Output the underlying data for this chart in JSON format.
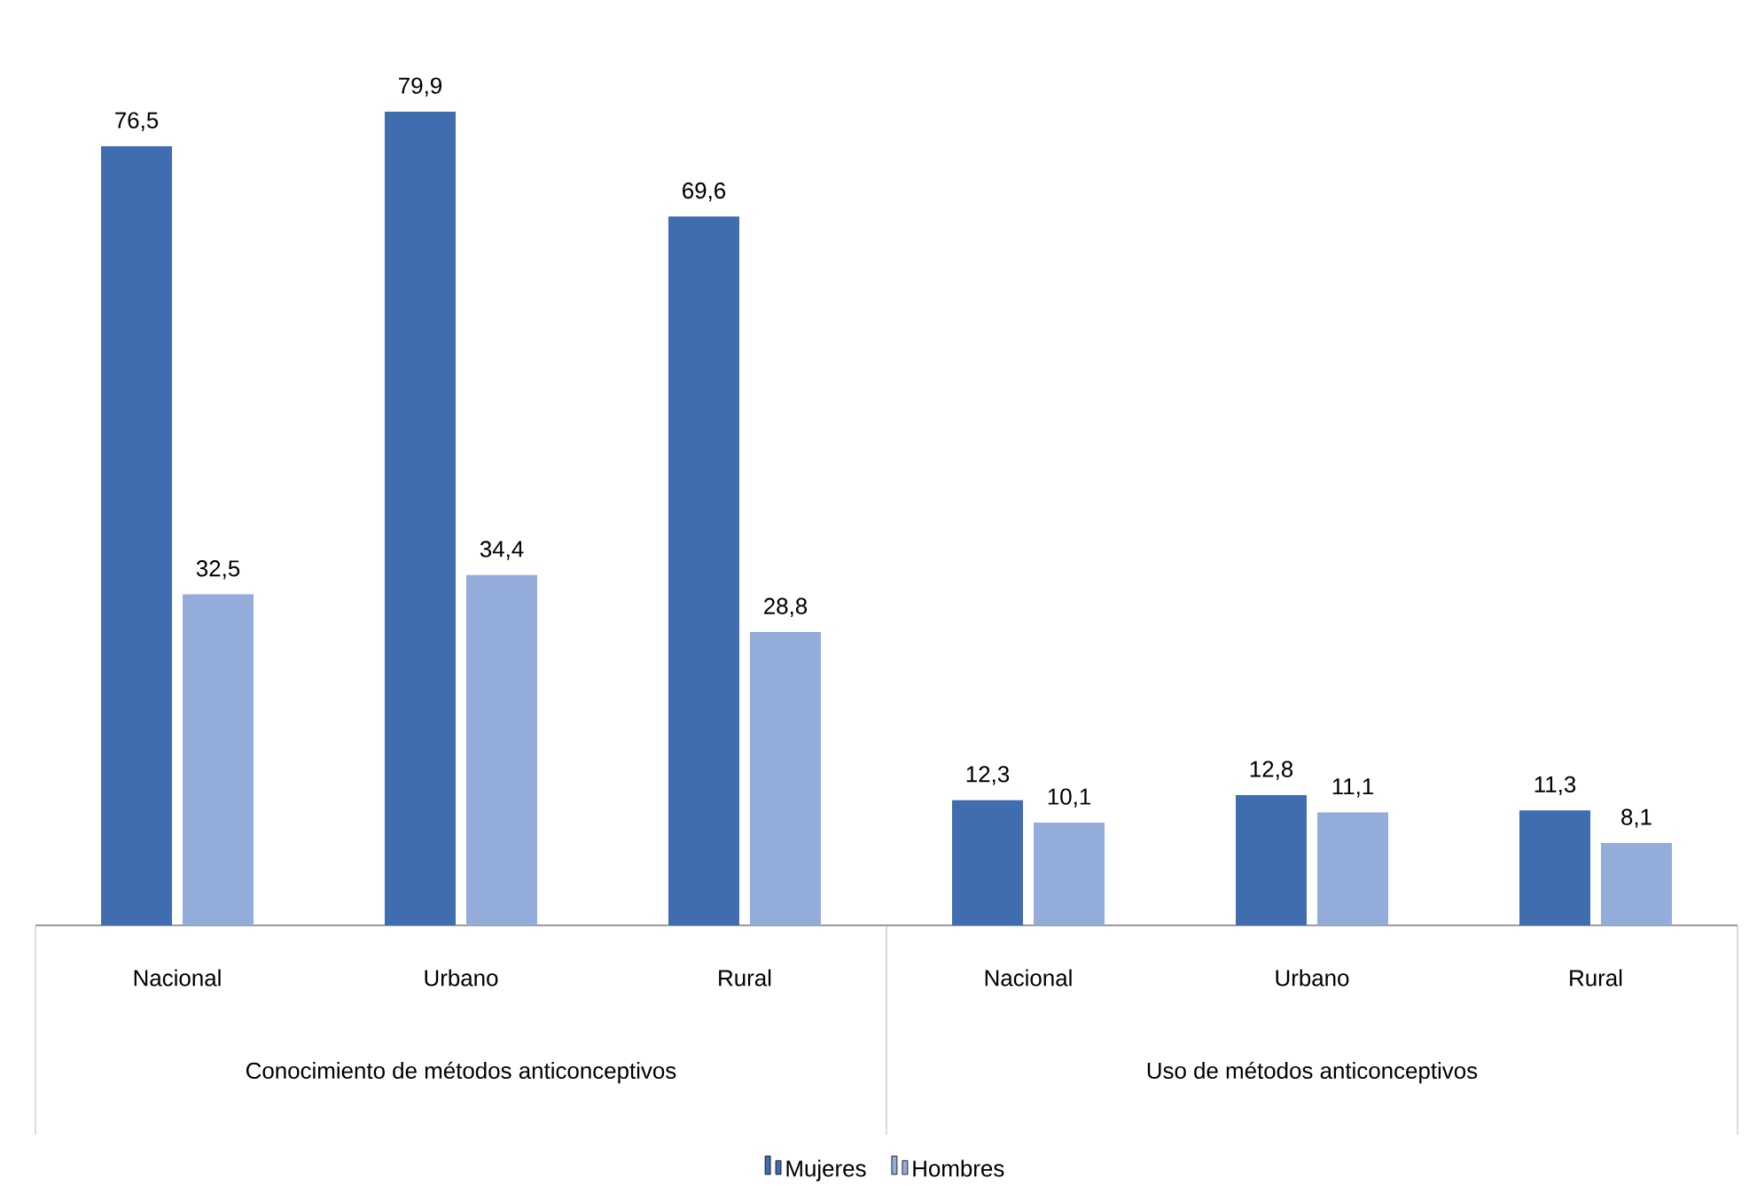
{
  "chart_data": {
    "type": "bar",
    "categories": [
      "Nacional",
      "Urbano",
      "Rural",
      "Nacional",
      "Urbano",
      "Rural"
    ],
    "series": [
      {
        "name": "Mujeres",
        "color": "#3f6db0",
        "values": [
          76.5,
          79.9,
          69.6,
          12.3,
          12.8,
          11.3
        ],
        "value_labels": [
          "76,5",
          "79,9",
          "69,6",
          "12,3",
          "12,8",
          "11,3"
        ]
      },
      {
        "name": "Hombres",
        "color": "#93acd9",
        "values": [
          32.5,
          34.4,
          28.8,
          10.1,
          11.1,
          8.1
        ],
        "value_labels": [
          "32,5",
          "34,4",
          "28,8",
          "10,1",
          "11,1",
          "8,1"
        ]
      }
    ],
    "annotations": [
      "Conocimiento de métodos anticonceptivos",
      "Uso de métodos anticonceptivos"
    ],
    "legend": "bottom",
    "grid": false
  }
}
